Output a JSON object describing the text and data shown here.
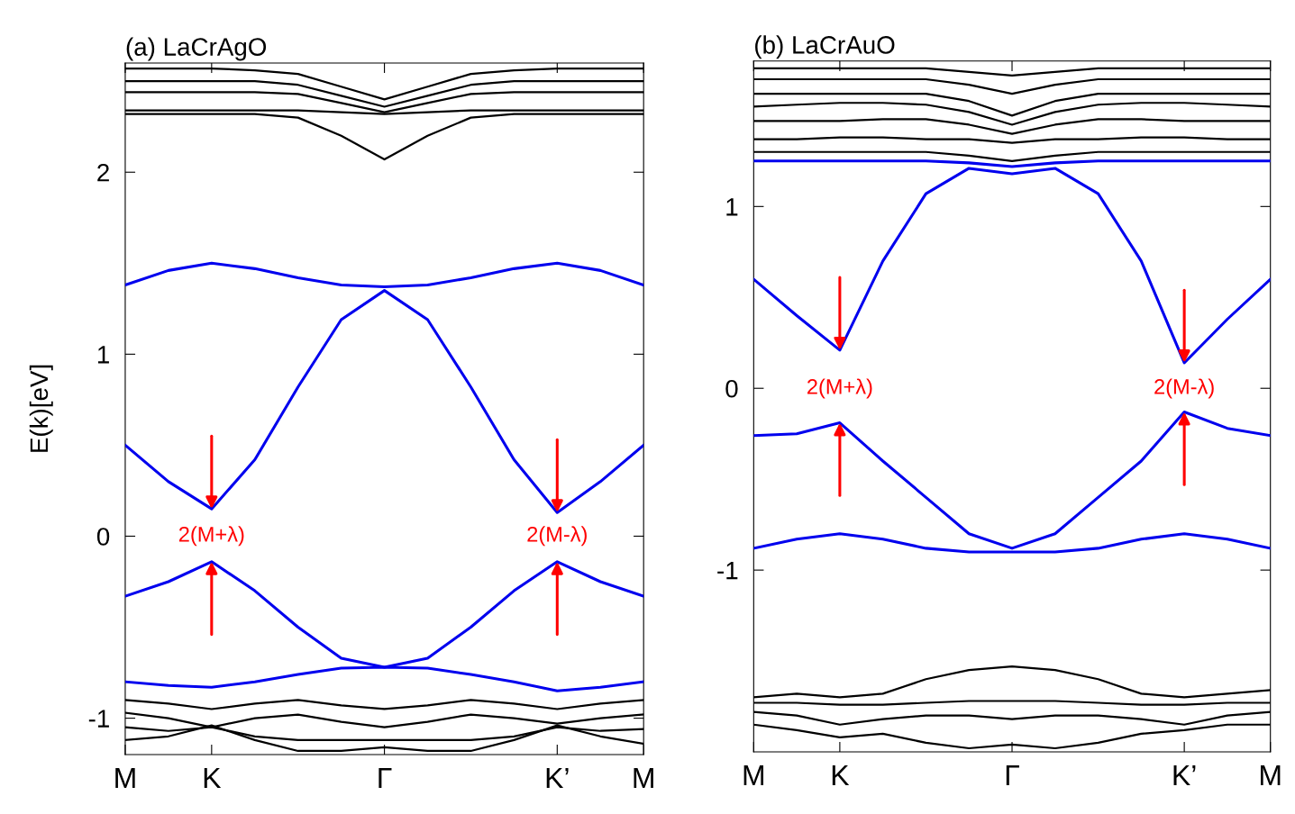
{
  "chart_data": [
    {
      "type": "line",
      "title": "(a) LaCrAgO",
      "ylabel": "E(k)[eV]",
      "categories": [
        "M",
        null,
        "K",
        null,
        null,
        null,
        "Γ",
        null,
        null,
        null,
        "K’",
        null,
        "M"
      ],
      "ylim": [
        -1.2,
        2.6
      ],
      "yticks": [
        -1,
        0,
        1,
        2
      ],
      "grid": false,
      "legend": false,
      "series": [
        {
          "color": "#0000ee",
          "values": [
            1.38,
            1.46,
            1.5,
            1.47,
            1.42,
            1.38,
            1.37,
            1.38,
            1.42,
            1.47,
            1.5,
            1.46,
            1.38
          ]
        },
        {
          "color": "#0000ee",
          "values": [
            0.5,
            0.3,
            0.15,
            0.42,
            0.82,
            1.19,
            1.35,
            1.19,
            0.82,
            0.42,
            0.13,
            0.3,
            0.5
          ]
        },
        {
          "color": "#0000ee",
          "values": [
            -0.33,
            -0.25,
            -0.14,
            -0.3,
            -0.5,
            -0.67,
            -0.72,
            -0.67,
            -0.5,
            -0.3,
            -0.14,
            -0.25,
            -0.33
          ]
        },
        {
          "color": "#0000ee",
          "values": [
            -0.8,
            -0.82,
            -0.83,
            -0.8,
            -0.76,
            -0.725,
            -0.72,
            -0.725,
            -0.76,
            -0.8,
            -0.85,
            -0.83,
            -0.8
          ]
        },
        {
          "color": "#000000",
          "values": [
            2.32,
            2.32,
            2.32,
            2.32,
            2.3,
            2.2,
            2.07,
            2.2,
            2.3,
            2.32,
            2.32,
            2.32,
            2.32
          ]
        },
        {
          "color": "#000000",
          "values": [
            2.34,
            2.34,
            2.34,
            2.34,
            2.34,
            2.33,
            2.32,
            2.33,
            2.34,
            2.34,
            2.34,
            2.34,
            2.34
          ]
        },
        {
          "color": "#000000",
          "values": [
            2.44,
            2.44,
            2.44,
            2.44,
            2.43,
            2.38,
            2.33,
            2.38,
            2.43,
            2.44,
            2.44,
            2.44,
            2.44
          ]
        },
        {
          "color": "#000000",
          "values": [
            2.5,
            2.5,
            2.5,
            2.5,
            2.48,
            2.42,
            2.36,
            2.42,
            2.48,
            2.5,
            2.5,
            2.5,
            2.5
          ]
        },
        {
          "color": "#000000",
          "values": [
            2.57,
            2.57,
            2.57,
            2.56,
            2.54,
            2.47,
            2.4,
            2.47,
            2.54,
            2.56,
            2.57,
            2.57,
            2.57
          ]
        },
        {
          "color": "#000000",
          "values": [
            -0.9,
            -0.92,
            -0.95,
            -0.92,
            -0.9,
            -0.93,
            -0.95,
            -0.93,
            -0.9,
            -0.92,
            -0.95,
            -0.92,
            -0.9
          ]
        },
        {
          "color": "#000000",
          "values": [
            -0.97,
            -1.0,
            -1.05,
            -1.0,
            -0.98,
            -1.02,
            -1.05,
            -1.02,
            -0.98,
            -1.0,
            -1.03,
            -1.0,
            -0.98
          ]
        },
        {
          "color": "#000000",
          "values": [
            -1.05,
            -1.07,
            -1.05,
            -1.1,
            -1.12,
            -1.12,
            -1.12,
            -1.12,
            -1.12,
            -1.1,
            -1.05,
            -1.07,
            -1.06
          ]
        },
        {
          "color": "#000000",
          "values": [
            -1.12,
            -1.1,
            -1.04,
            -1.12,
            -1.18,
            -1.18,
            -1.16,
            -1.18,
            -1.18,
            -1.12,
            -1.04,
            -1.1,
            -1.14
          ]
        }
      ],
      "annotations": [
        "2(M+λ)",
        "2(M-λ)"
      ]
    },
    {
      "type": "line",
      "title": "(b) LaCrAuO",
      "categories": [
        "M",
        null,
        "K",
        null,
        null,
        null,
        "Γ",
        null,
        null,
        null,
        "K’",
        null,
        "M"
      ],
      "ylim": [
        -2,
        1.8
      ],
      "yticks": [
        -1,
        0,
        1
      ],
      "grid": false,
      "legend": false,
      "series": [
        {
          "color": "#0000ee",
          "values": [
            1.25,
            1.25,
            1.25,
            1.25,
            1.25,
            1.24,
            1.22,
            1.24,
            1.25,
            1.25,
            1.25,
            1.25,
            1.25
          ]
        },
        {
          "color": "#0000ee",
          "values": [
            0.6,
            0.4,
            0.21,
            0.7,
            1.07,
            1.21,
            1.18,
            1.21,
            1.07,
            0.7,
            0.14,
            0.38,
            0.6
          ]
        },
        {
          "color": "#0000ee",
          "values": [
            -0.26,
            -0.25,
            -0.19,
            -0.4,
            -0.6,
            -0.8,
            -0.88,
            -0.8,
            -0.6,
            -0.4,
            -0.13,
            -0.22,
            -0.26
          ]
        },
        {
          "color": "#0000ee",
          "values": [
            -0.88,
            -0.83,
            -0.8,
            -0.83,
            -0.88,
            -0.9,
            -0.9,
            -0.9,
            -0.88,
            -0.83,
            -0.8,
            -0.83,
            -0.88
          ]
        },
        {
          "color": "#000000",
          "values": [
            1.3,
            1.3,
            1.3,
            1.3,
            1.3,
            1.28,
            1.25,
            1.28,
            1.3,
            1.3,
            1.3,
            1.3,
            1.3
          ]
        },
        {
          "color": "#000000",
          "values": [
            1.37,
            1.37,
            1.38,
            1.38,
            1.37,
            1.37,
            1.35,
            1.37,
            1.37,
            1.38,
            1.38,
            1.37,
            1.37
          ]
        },
        {
          "color": "#000000",
          "values": [
            1.47,
            1.47,
            1.47,
            1.48,
            1.48,
            1.45,
            1.4,
            1.45,
            1.48,
            1.48,
            1.47,
            1.47,
            1.47
          ]
        },
        {
          "color": "#000000",
          "values": [
            1.55,
            1.56,
            1.57,
            1.57,
            1.56,
            1.52,
            1.45,
            1.52,
            1.56,
            1.57,
            1.57,
            1.56,
            1.55
          ]
        },
        {
          "color": "#000000",
          "values": [
            1.62,
            1.62,
            1.62,
            1.62,
            1.62,
            1.58,
            1.5,
            1.58,
            1.62,
            1.62,
            1.62,
            1.62,
            1.62
          ]
        },
        {
          "color": "#000000",
          "values": [
            1.7,
            1.7,
            1.7,
            1.7,
            1.7,
            1.67,
            1.62,
            1.67,
            1.7,
            1.7,
            1.7,
            1.7,
            1.7
          ]
        },
        {
          "color": "#000000",
          "values": [
            1.76,
            1.76,
            1.76,
            1.76,
            1.76,
            1.74,
            1.72,
            1.74,
            1.76,
            1.76,
            1.76,
            1.76,
            1.76
          ]
        },
        {
          "color": "#000000",
          "values": [
            -1.7,
            -1.68,
            -1.7,
            -1.68,
            -1.6,
            -1.55,
            -1.53,
            -1.55,
            -1.6,
            -1.68,
            -1.7,
            -1.68,
            -1.66
          ]
        },
        {
          "color": "#000000",
          "values": [
            -1.73,
            -1.73,
            -1.74,
            -1.74,
            -1.73,
            -1.72,
            -1.72,
            -1.72,
            -1.73,
            -1.74,
            -1.74,
            -1.73,
            -1.73
          ]
        },
        {
          "color": "#000000",
          "values": [
            -1.78,
            -1.8,
            -1.85,
            -1.82,
            -1.8,
            -1.8,
            -1.82,
            -1.8,
            -1.8,
            -1.82,
            -1.85,
            -1.8,
            -1.78
          ]
        },
        {
          "color": "#000000",
          "values": [
            -1.85,
            -1.88,
            -1.92,
            -1.9,
            -1.95,
            -1.98,
            -1.96,
            -1.98,
            -1.95,
            -1.9,
            -1.88,
            -1.85,
            -1.85
          ]
        }
      ],
      "annotations": [
        "2(M+λ)",
        "2(M-λ)"
      ]
    }
  ]
}
